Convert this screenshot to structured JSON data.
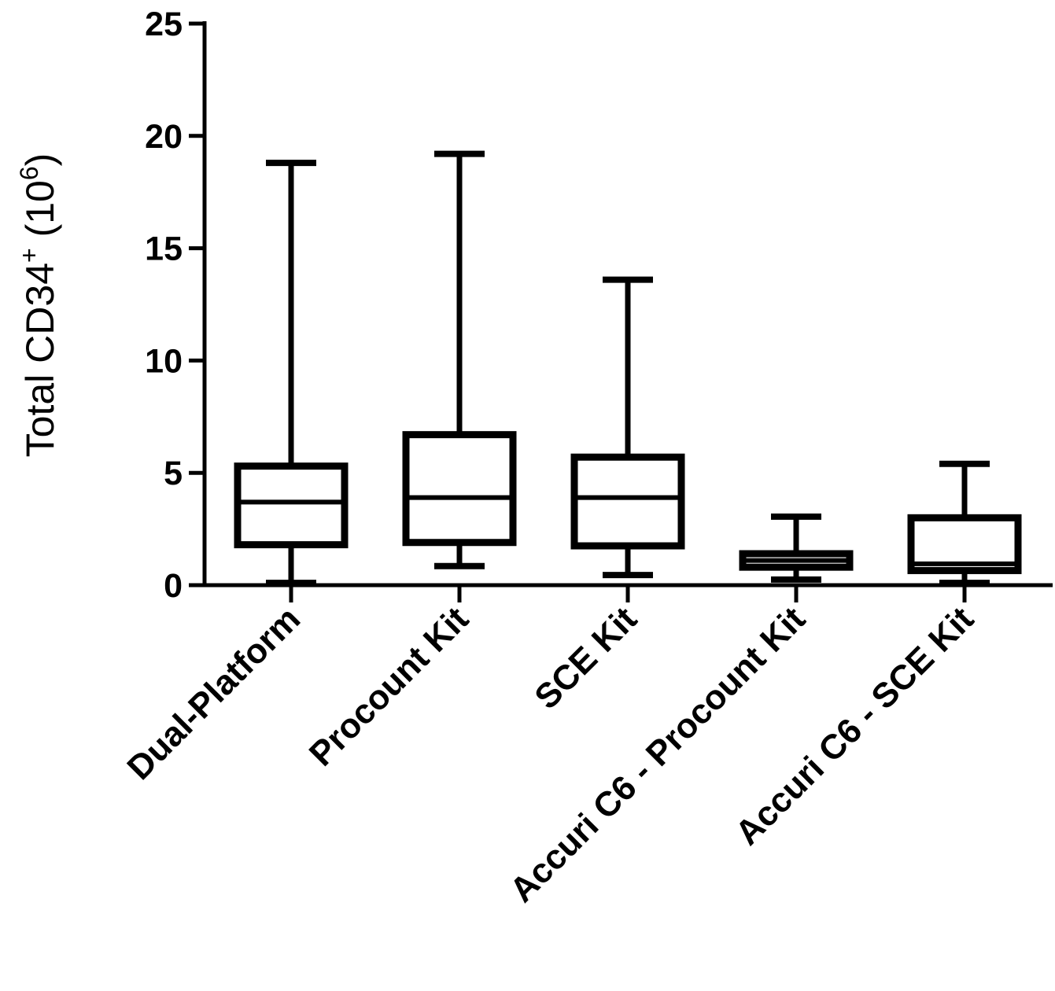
{
  "chart_data": {
    "type": "boxplot",
    "title": "",
    "xlabel": "",
    "ylabel": {
      "prefix": "Total CD34",
      "sup1": "+",
      "middle": " (10",
      "sup2": "6",
      "suffix": ")"
    },
    "ylim": [
      0,
      25
    ],
    "yticks": [
      {
        "value": 0,
        "label": "0"
      },
      {
        "value": 5,
        "label": "5"
      },
      {
        "value": 10,
        "label": "10"
      },
      {
        "value": 15,
        "label": "15"
      },
      {
        "value": 20,
        "label": "20"
      },
      {
        "value": 25,
        "label": "25"
      }
    ],
    "categories": [
      "Dual-Platform",
      "Procount Kit",
      "SCE Kit",
      "Accuri C6 - Procount Kit",
      "Accuri C6 - SCE Kit"
    ],
    "boxes": [
      {
        "name": "Dual-Platform",
        "min": 0.1,
        "q1": 1.8,
        "median": 3.7,
        "q3": 5.3,
        "max": 18.8
      },
      {
        "name": "Procount Kit",
        "min": 0.85,
        "q1": 1.9,
        "median": 3.9,
        "q3": 6.7,
        "max": 19.2
      },
      {
        "name": "SCE Kit",
        "min": 0.45,
        "q1": 1.75,
        "median": 3.9,
        "q3": 5.7,
        "max": 13.6
      },
      {
        "name": "Accuri C6 - Procount Kit",
        "min": 0.25,
        "q1": 0.8,
        "median": 1.1,
        "q3": 1.4,
        "max": 3.05
      },
      {
        "name": "Accuri C6 - SCE Kit",
        "min": 0.1,
        "q1": 0.65,
        "median": 0.95,
        "q3": 3.0,
        "max": 5.4
      }
    ]
  }
}
